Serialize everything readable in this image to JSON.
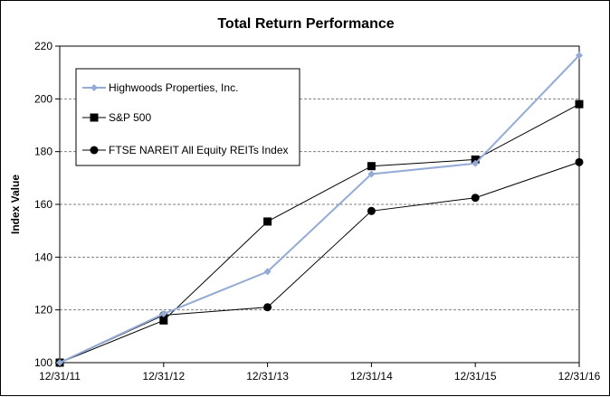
{
  "chart_data": {
    "type": "line",
    "title": "Total Return Performance",
    "xlabel": "",
    "ylabel": "Index Value",
    "categories": [
      "12/31/11",
      "12/31/12",
      "12/31/13",
      "12/31/14",
      "12/31/15",
      "12/31/16"
    ],
    "ylim": [
      100,
      220
    ],
    "yticks": [
      100,
      120,
      140,
      160,
      180,
      200,
      220
    ],
    "grid": "horizontal dashed",
    "legend_position": "top-left",
    "series": [
      {
        "name": "Highwoods Properties, Inc.",
        "values": [
          100,
          118.5,
          134.5,
          171.5,
          175.5,
          216.5
        ],
        "color": "#94abd6",
        "marker": "diamond"
      },
      {
        "name": "S&P 500",
        "values": [
          100,
          116.0,
          153.5,
          174.5,
          177.0,
          198.0
        ],
        "color": "#000000",
        "marker": "square"
      },
      {
        "name": "FTSE NAREIT All Equity REITs Index",
        "values": [
          100,
          118.0,
          121.0,
          157.5,
          162.5,
          176.0
        ],
        "color": "#000000",
        "marker": "circle"
      }
    ]
  }
}
